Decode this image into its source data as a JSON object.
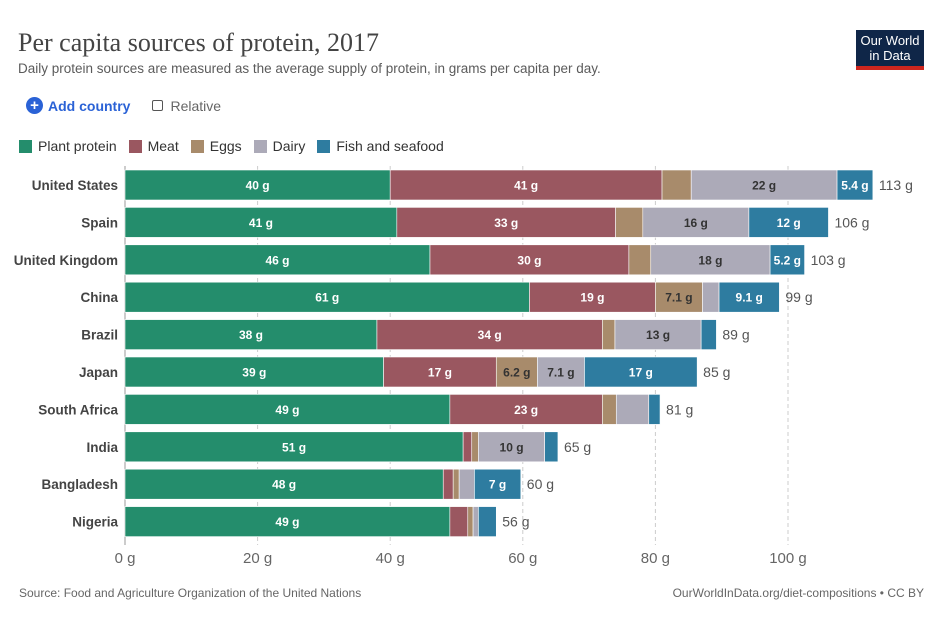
{
  "header": {
    "title": "Per capita sources of protein, 2017",
    "subtitle": "Daily protein sources are measured as the average supply of protein, in grams per capita per day.",
    "logo": "Our World in Data"
  },
  "controls": {
    "add_country": "Add country",
    "relative": "Relative",
    "relative_checked": false
  },
  "footer": {
    "source": "Source: Food and Agriculture Organization of the United Nations",
    "link": "OurWorldInData.org/diet-compositions • CC BY"
  },
  "chart_data": {
    "type": "bar",
    "orientation": "horizontal",
    "stacked": true,
    "title": "Per capita sources of protein, 2017",
    "xlim": [
      0,
      113
    ],
    "x_ticks": [
      "0 g",
      "20 g",
      "40 g",
      "60 g",
      "80 g",
      "100 g"
    ],
    "x_tick_values": [
      0,
      20,
      40,
      60,
      80,
      100
    ],
    "grid": "vertical dashed",
    "legend_position": "top-left",
    "categories": [
      "United States",
      "Spain",
      "United Kingdom",
      "China",
      "Brazil",
      "Japan",
      "South Africa",
      "India",
      "Bangladesh",
      "Nigeria"
    ],
    "totals": [
      "113 g",
      "106 g",
      "103 g",
      "99 g",
      "89 g",
      "85 g",
      "81 g",
      "65 g",
      "60 g",
      "56 g"
    ],
    "series": [
      {
        "name": "Plant protein",
        "color": "#248d6c",
        "values": [
          40,
          41,
          46,
          61,
          38,
          39,
          49,
          51,
          48,
          49
        ],
        "labels": [
          "40 g",
          "41 g",
          "46 g",
          "61 g",
          "38 g",
          "39 g",
          "49 g",
          "51 g",
          "48 g",
          "49 g"
        ]
      },
      {
        "name": "Meat",
        "color": "#9a5760",
        "values": [
          41,
          33,
          30,
          19,
          34,
          17,
          23,
          1.3,
          1.5,
          2.7
        ],
        "labels": [
          "41 g",
          "33 g",
          "30 g",
          "19 g",
          "34 g",
          "17 g",
          "23 g",
          "",
          "",
          ""
        ]
      },
      {
        "name": "Eggs",
        "color": "#a88b6b",
        "values": [
          4.4,
          4.1,
          3.3,
          7.1,
          1.9,
          6.2,
          2.1,
          1,
          0.9,
          0.8
        ],
        "labels": [
          "",
          "",
          "",
          "7.1 g",
          "",
          "6.2 g",
          "",
          "",
          "",
          ""
        ]
      },
      {
        "name": "Dairy",
        "color": "#acaab8",
        "values": [
          22,
          16,
          18,
          2.5,
          13,
          7.1,
          4.9,
          10,
          2.3,
          0.8
        ],
        "labels": [
          "22 g",
          "16 g",
          "18 g",
          "",
          "13 g",
          "7.1 g",
          "",
          "10 g",
          "",
          ""
        ]
      },
      {
        "name": "Fish and seafood",
        "color": "#2e7ca0",
        "values": [
          5.4,
          12,
          5.2,
          9.1,
          2.3,
          17,
          1.7,
          2,
          7,
          2.7
        ],
        "labels": [
          "5.4 g",
          "12 g",
          "5.2 g",
          "9.1 g",
          "",
          "17 g",
          "",
          "",
          "7 g",
          ""
        ]
      }
    ]
  }
}
